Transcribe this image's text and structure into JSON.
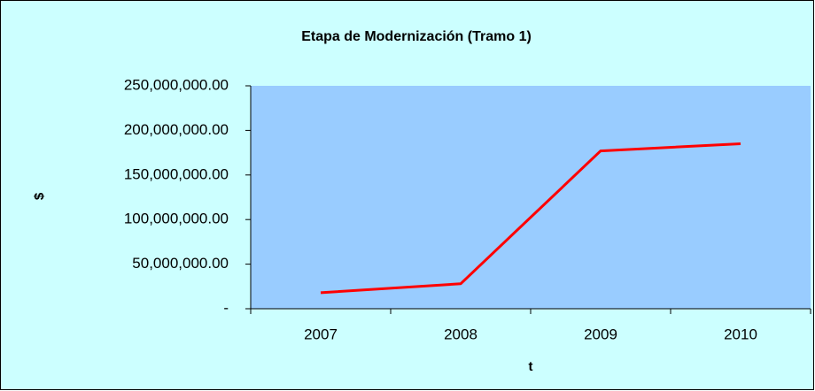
{
  "chart_data": {
    "type": "line",
    "title": "Etapa de Modernización (Tramo 1)",
    "x_label": "t",
    "y_label": "$",
    "categories": [
      "2007",
      "2008",
      "2009",
      "2010"
    ],
    "series": [
      {
        "name": "Tramo 1",
        "color": "#ff0000",
        "values": [
          18000000,
          28000000,
          177000000,
          185000000
        ]
      }
    ],
    "ylim": [
      0,
      250000000
    ],
    "yticks": [
      {
        "value": 0,
        "label": "-"
      },
      {
        "value": 50000000,
        "label": "50,000,000.00"
      },
      {
        "value": 100000000,
        "label": "100,000,000.00"
      },
      {
        "value": 150000000,
        "label": "150,000,000.00"
      },
      {
        "value": 200000000,
        "label": "200,000,000.00"
      },
      {
        "value": 250000000,
        "label": "250,000,000.00"
      }
    ],
    "grid": false
  }
}
